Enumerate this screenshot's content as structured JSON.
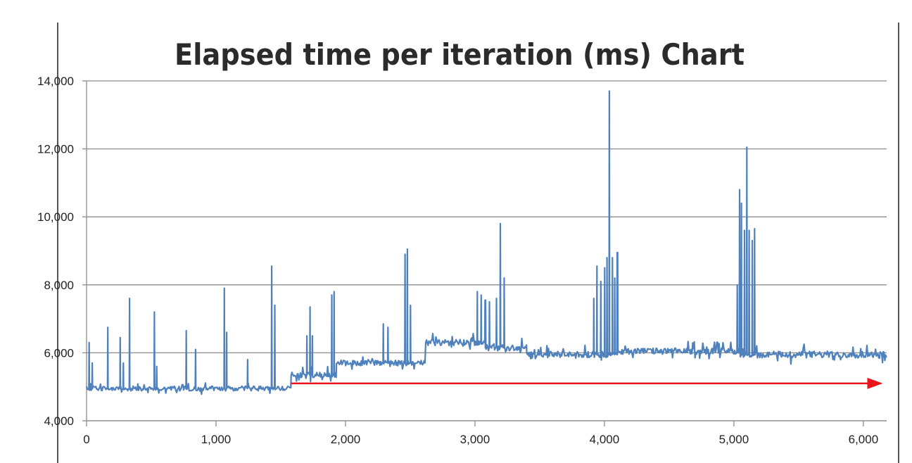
{
  "chart_data": {
    "type": "line",
    "title": "Elapsed time per iteration (ms) Chart",
    "xlabel": "",
    "ylabel": "",
    "xlim": [
      0,
      6180
    ],
    "ylim": [
      4000,
      14000
    ],
    "x_ticks": [
      0,
      1000,
      2000,
      3000,
      4000,
      5000,
      6000
    ],
    "y_ticks": [
      4000,
      6000,
      8000,
      10000,
      12000,
      14000
    ],
    "x_tick_labels": [
      "0",
      "1,000",
      "2,000",
      "3,000",
      "4,000",
      "5,000",
      "6,000"
    ],
    "y_tick_labels": [
      "4,000",
      "6,000",
      "8,000",
      "10,000",
      "12,000",
      "14,000"
    ],
    "grid": "horizontal",
    "legend": "none",
    "colors": {
      "series": "#4f81bd",
      "grid": "#8c8c8c",
      "axis": "#8c8c8c",
      "annotation_arrow": "#e8161b",
      "title": "#2b2b2b",
      "frame": "#555555"
    },
    "baseline_segments": [
      {
        "x_start": 0,
        "x_end": 1580,
        "mean": 4950,
        "jitter": 70
      },
      {
        "x_start": 1580,
        "x_end": 1930,
        "mean": 5350,
        "jitter": 80
      },
      {
        "x_start": 1930,
        "x_end": 2620,
        "mean": 5700,
        "jitter": 80
      },
      {
        "x_start": 2620,
        "x_end": 3080,
        "mean": 6300,
        "jitter": 90
      },
      {
        "x_start": 3080,
        "x_end": 3400,
        "mean": 6150,
        "jitter": 90
      },
      {
        "x_start": 3400,
        "x_end": 4100,
        "mean": 5950,
        "jitter": 90
      },
      {
        "x_start": 4100,
        "x_end": 5050,
        "mean": 6050,
        "jitter": 90
      },
      {
        "x_start": 5050,
        "x_end": 6180,
        "mean": 5950,
        "jitter": 100
      }
    ],
    "spikes": [
      {
        "x": 20,
        "y": 6300
      },
      {
        "x": 40,
        "y": 5700
      },
      {
        "x": 160,
        "y": 6750
      },
      {
        "x": 260,
        "y": 6450
      },
      {
        "x": 280,
        "y": 5700
      },
      {
        "x": 330,
        "y": 7600
      },
      {
        "x": 520,
        "y": 7200
      },
      {
        "x": 540,
        "y": 5600
      },
      {
        "x": 770,
        "y": 6650
      },
      {
        "x": 840,
        "y": 6100
      },
      {
        "x": 1060,
        "y": 7900
      },
      {
        "x": 1080,
        "y": 6600
      },
      {
        "x": 1240,
        "y": 5800
      },
      {
        "x": 1430,
        "y": 8550
      },
      {
        "x": 1450,
        "y": 7400
      },
      {
        "x": 1700,
        "y": 6500
      },
      {
        "x": 1720,
        "y": 7350
      },
      {
        "x": 1740,
        "y": 6500
      },
      {
        "x": 1890,
        "y": 7700
      },
      {
        "x": 1910,
        "y": 7800
      },
      {
        "x": 2290,
        "y": 6850
      },
      {
        "x": 2330,
        "y": 6750
      },
      {
        "x": 2460,
        "y": 8900
      },
      {
        "x": 2480,
        "y": 9050
      },
      {
        "x": 2500,
        "y": 7400
      },
      {
        "x": 3020,
        "y": 7800
      },
      {
        "x": 3050,
        "y": 7700
      },
      {
        "x": 3080,
        "y": 7550
      },
      {
        "x": 3110,
        "y": 7500
      },
      {
        "x": 3160,
        "y": 7600
      },
      {
        "x": 3190,
        "y": 9800
      },
      {
        "x": 3220,
        "y": 8200
      },
      {
        "x": 3920,
        "y": 7600
      },
      {
        "x": 3940,
        "y": 8550
      },
      {
        "x": 3970,
        "y": 8100
      },
      {
        "x": 4000,
        "y": 8500
      },
      {
        "x": 4020,
        "y": 8800
      },
      {
        "x": 4040,
        "y": 13700
      },
      {
        "x": 4060,
        "y": 8800
      },
      {
        "x": 4080,
        "y": 8200
      },
      {
        "x": 4100,
        "y": 8950
      },
      {
        "x": 5020,
        "y": 8000
      },
      {
        "x": 5040,
        "y": 10800
      },
      {
        "x": 5060,
        "y": 10400
      },
      {
        "x": 5080,
        "y": 9600
      },
      {
        "x": 5100,
        "y": 12050
      },
      {
        "x": 5120,
        "y": 9600
      },
      {
        "x": 5140,
        "y": 9300
      },
      {
        "x": 5160,
        "y": 9650
      }
    ],
    "annotation_arrow": {
      "x_start": 1580,
      "x_end": 6150,
      "y": 5100
    }
  }
}
